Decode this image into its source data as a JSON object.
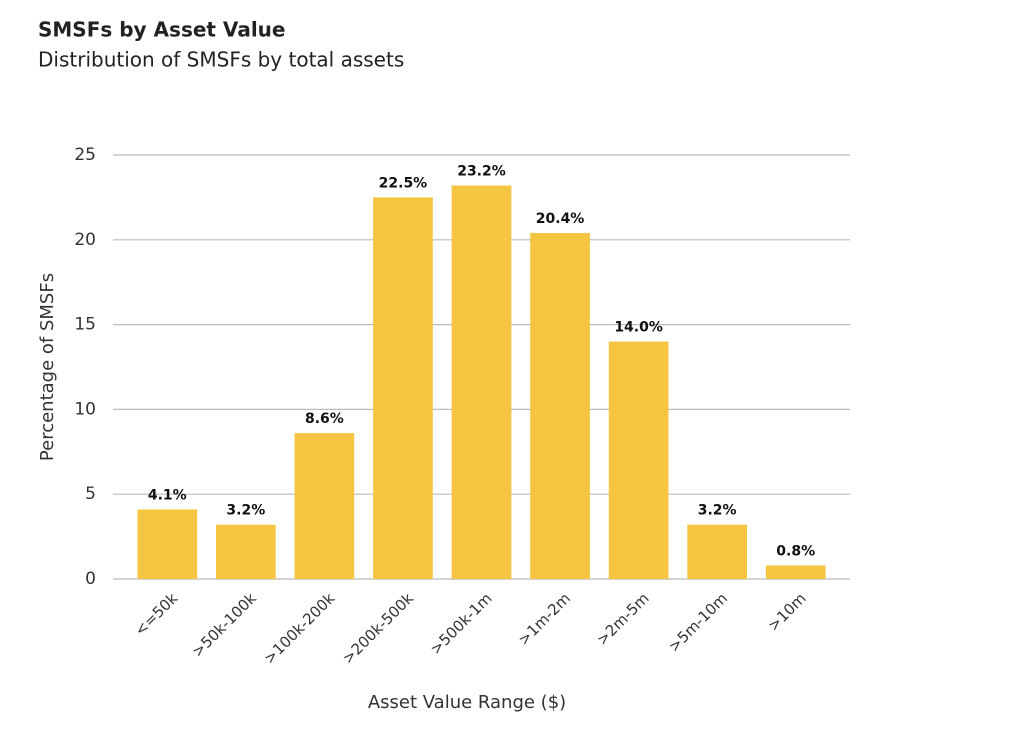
{
  "chart_data": {
    "type": "bar",
    "title": "SMSFs by Asset Value",
    "subtitle": "Distribution of SMSFs by total assets",
    "x_label": "Asset Value Range ($)",
    "y_label": "Percentage of SMSFs",
    "categories": [
      "<=50k",
      ">50k-100k",
      ">100k-200k",
      ">200k-500k",
      ">500k-1m",
      ">1m-2m",
      ">2m-5m",
      ">5m-10m",
      ">10m"
    ],
    "values": [
      4.1,
      3.2,
      8.6,
      22.5,
      23.2,
      20.4,
      14.0,
      3.2,
      0.8
    ],
    "value_labels": [
      "4.1%",
      "3.2%",
      "8.6%",
      "22.5%",
      "23.2%",
      "20.4%",
      "14.0%",
      "3.2%",
      "0.8%"
    ],
    "color": "#f5c542",
    "ylim": [
      0,
      25
    ],
    "yticks": [
      0,
      5,
      10,
      15,
      20,
      25
    ],
    "grid": true
  }
}
